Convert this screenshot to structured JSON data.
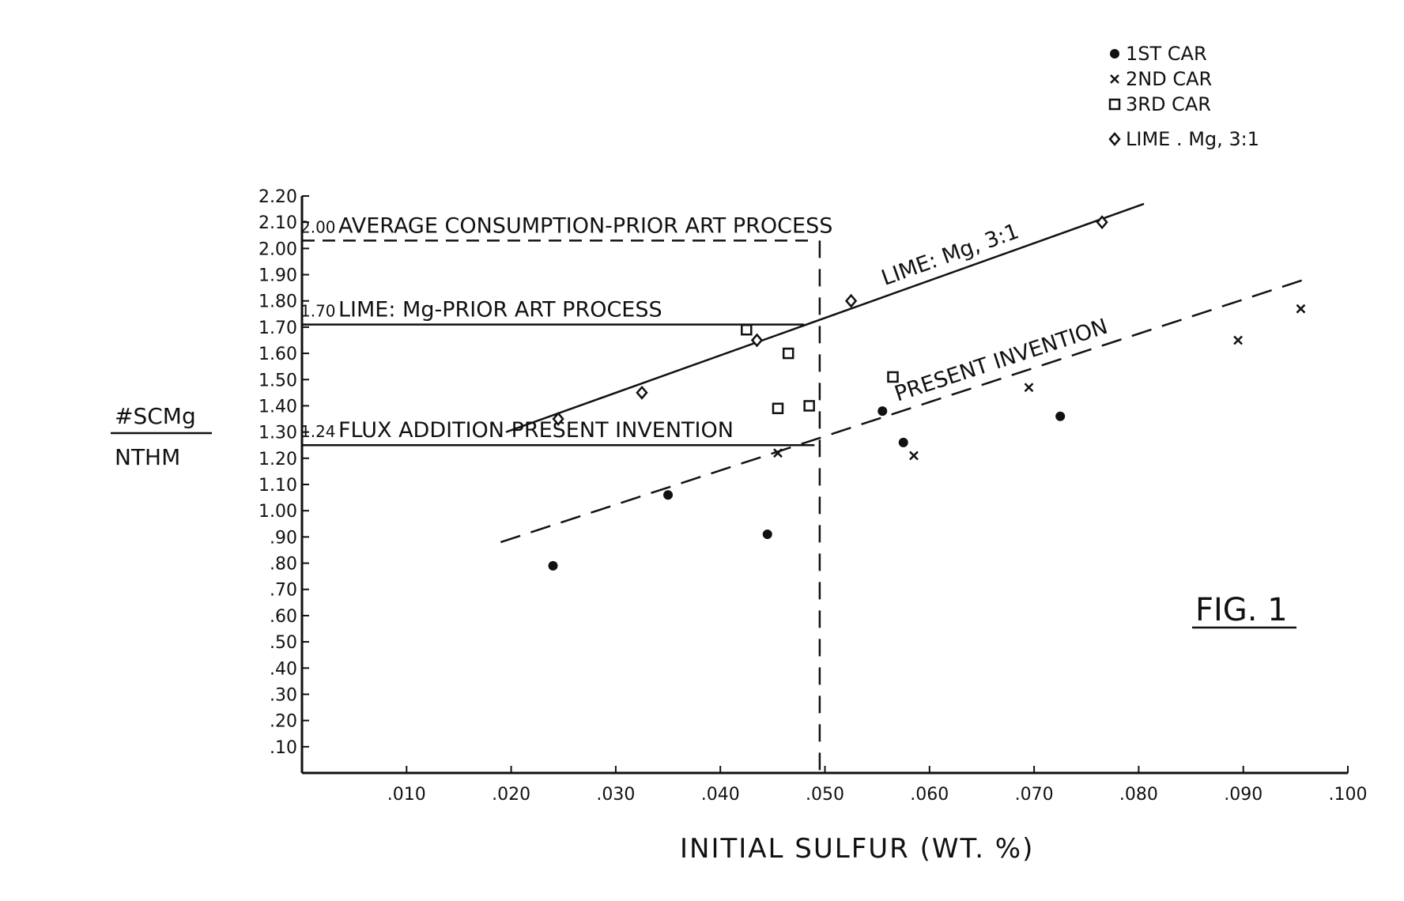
{
  "chart_data": {
    "type": "scatter",
    "figure_label": "FIG. 1",
    "xlabel": "INITIAL SULFUR (WT. %)",
    "ylabel_numerator": "#SCMg",
    "ylabel_denominator": "NTHM",
    "xlim": [
      0,
      0.1
    ],
    "ylim": [
      0,
      2.2
    ],
    "x_ticks": [
      0.01,
      0.02,
      0.03,
      0.04,
      0.05,
      0.06,
      0.07,
      0.08,
      0.09,
      0.1
    ],
    "x_tick_labels": [
      ".010",
      ".020",
      ".030",
      ".040",
      ".050",
      ".060",
      ".070",
      ".080",
      ".090",
      ".100"
    ],
    "y_ticks": [
      0.1,
      0.2,
      0.3,
      0.4,
      0.5,
      0.6,
      0.7,
      0.8,
      0.9,
      1.0,
      1.1,
      1.2,
      1.3,
      1.4,
      1.5,
      1.6,
      1.7,
      1.8,
      1.9,
      2.0,
      2.1,
      2.2
    ],
    "y_tick_labels": [
      ".10",
      ".20",
      ".30",
      ".40",
      ".50",
      ".60",
      ".70",
      ".80",
      ".90",
      "1.00",
      "1.10",
      "1.20",
      "1.30",
      "1.40",
      "1.50",
      "1.60",
      "1.70",
      "1.80",
      "1.90",
      "2.00",
      "2.10",
      "2.20"
    ],
    "legend": {
      "position": "top-right",
      "entries": [
        {
          "marker": "dot",
          "label": "1ST CAR"
        },
        {
          "marker": "x",
          "label": "2ND CAR"
        },
        {
          "marker": "square",
          "label": "3RD CAR"
        },
        {
          "marker": "diamond",
          "label": "LIME . Mg, 3:1"
        }
      ]
    },
    "series": [
      {
        "name": "1ST CAR",
        "marker": "dot",
        "points": [
          [
            0.024,
            0.79
          ],
          [
            0.035,
            1.06
          ],
          [
            0.0445,
            0.91
          ],
          [
            0.0555,
            1.38
          ],
          [
            0.0575,
            1.26
          ],
          [
            0.0725,
            1.36
          ]
        ]
      },
      {
        "name": "2ND CAR",
        "marker": "x",
        "points": [
          [
            0.0455,
            1.22
          ],
          [
            0.0585,
            1.21
          ],
          [
            0.0695,
            1.47
          ],
          [
            0.0895,
            1.65
          ],
          [
            0.0955,
            1.77
          ]
        ]
      },
      {
        "name": "3RD CAR",
        "marker": "square",
        "points": [
          [
            0.0425,
            1.69
          ],
          [
            0.0455,
            1.39
          ],
          [
            0.0465,
            1.6
          ],
          [
            0.0485,
            1.4
          ],
          [
            0.0565,
            1.51
          ]
        ]
      },
      {
        "name": "LIME . Mg, 3:1",
        "marker": "diamond",
        "points": [
          [
            0.0245,
            1.35
          ],
          [
            0.0325,
            1.45
          ],
          [
            0.0435,
            1.65
          ],
          [
            0.0525,
            1.8
          ],
          [
            0.0765,
            2.1
          ]
        ]
      }
    ],
    "fit_lines": [
      {
        "label": "LIME: Mg, 3:1",
        "style": "solid",
        "from": [
          0.0195,
          1.3
        ],
        "to": [
          0.0805,
          2.17
        ]
      },
      {
        "label": "PRESENT INVENTION",
        "style": "dashed",
        "from": [
          0.019,
          0.88
        ],
        "to": [
          0.0965,
          1.89
        ]
      }
    ],
    "reference_lines": [
      {
        "value_label": "2.00",
        "text": "AVERAGE CONSUMPTION-PRIOR ART PROCESS",
        "y": 2.03,
        "x_end": 0.049,
        "style": "dashed"
      },
      {
        "value_label": "1.70",
        "text": "LIME: Mg-PRIOR ART PROCESS",
        "y": 1.71,
        "x_end": 0.048,
        "style": "solid"
      },
      {
        "value_label": "1.24",
        "text": "FLUX ADDITION PRESENT INVENTION",
        "y": 1.25,
        "x_end": 0.049,
        "style": "solid"
      }
    ],
    "vertical_lines": [
      {
        "x": 0.0495,
        "style": "dashed",
        "y_top": 2.03
      }
    ]
  }
}
